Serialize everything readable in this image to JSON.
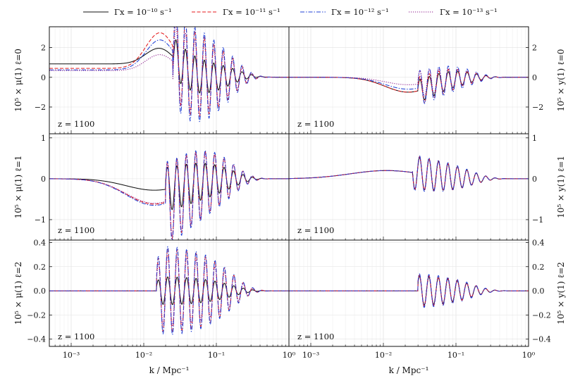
{
  "chart_data": {
    "type": "line",
    "layout": "3 rows x 2 columns, shared x-axis",
    "legend": {
      "placement": "top-center, above panels, single row",
      "series": [
        {
          "name": "Γx = 10⁻¹⁰ s⁻¹",
          "color": "#111111",
          "style": "solid"
        },
        {
          "name": "Γx = 10⁻¹¹ s⁻¹",
          "color": "#e41a1c",
          "style": "dashed"
        },
        {
          "name": "Γx = 10⁻¹² s⁻¹",
          "color": "#1f3fd6",
          "style": "dashdot"
        },
        {
          "name": "Γx = 10⁻¹³ s⁻¹",
          "color": "#8b1a8b",
          "style": "dotted"
        }
      ]
    },
    "xaxis": {
      "label": "k / Mpc⁻¹",
      "scale": "log",
      "xlim": [
        0.0005,
        1
      ],
      "ticks": [
        "10⁻³",
        "10⁻²",
        "10⁻¹",
        "10⁰"
      ],
      "grid": true
    },
    "annotation": "z = 1100",
    "panels": [
      {
        "id": "mu0",
        "row": 0,
        "col": 0,
        "ylabel": "10⁵ × μ(1) ℓ=0",
        "ylim": [
          -3.8,
          3.4
        ],
        "yticks": [
          "−2",
          "0",
          "2"
        ],
        "series": [
          {
            "name": "Γx = 10⁻¹⁰ s⁻¹",
            "base": 0.9,
            "bump": 2.1,
            "amp": 1.4
          },
          {
            "name": "Γx = 10⁻¹¹ s⁻¹",
            "base": 0.6,
            "bump": 3.1,
            "amp": 3.3
          },
          {
            "name": "Γx = 10⁻¹² s⁻¹",
            "base": 0.5,
            "bump": 2.6,
            "amp": 3.7
          },
          {
            "name": "Γx = 10⁻¹³ s⁻¹",
            "base": 0.45,
            "bump": 1.6,
            "amp": 2.8
          }
        ]
      },
      {
        "id": "y0",
        "row": 0,
        "col": 1,
        "ylabel": "10⁵ × y(1) ℓ=0",
        "ylim": [
          -3.8,
          3.4
        ],
        "yticks": [
          "−2",
          "0",
          "2"
        ],
        "series": [
          {
            "name": "Γx = 10⁻¹⁰ s⁻¹",
            "dip": -1.0,
            "amp": 0.8
          },
          {
            "name": "Γx = 10⁻¹¹ s⁻¹",
            "dip": -1.0,
            "amp": 1.0
          },
          {
            "name": "Γx = 10⁻¹² s⁻¹",
            "dip": -0.8,
            "amp": 1.25
          },
          {
            "name": "Γx = 10⁻¹³ s⁻¹",
            "dip": -0.5,
            "amp": 0.95
          }
        ]
      },
      {
        "id": "mu1",
        "row": 1,
        "col": 0,
        "ylabel": "10⁵ × μ(1) ℓ=1",
        "ylim": [
          -1.5,
          1.1
        ],
        "yticks": [
          "−1",
          "0",
          "1"
        ],
        "series": [
          {
            "name": "Γx = 10⁻¹⁰ s⁻¹",
            "dip": -0.28,
            "amp": 0.55
          },
          {
            "name": "Γx = 10⁻¹¹ s⁻¹",
            "dip": -0.62,
            "amp": 1.0
          },
          {
            "name": "Γx = 10⁻¹² s⁻¹",
            "dip": -0.65,
            "amp": 1.05
          },
          {
            "name": "Γx = 10⁻¹³ s⁻¹",
            "dip": -0.6,
            "amp": 0.95
          }
        ]
      },
      {
        "id": "y1",
        "row": 1,
        "col": 1,
        "ylabel": "10⁵ × y(1) ℓ=1",
        "ylim": [
          -1.5,
          1.1
        ],
        "yticks": [
          "−1",
          "0",
          "1"
        ],
        "series": [
          {
            "name": "Γx = 10⁻¹⁰ s⁻¹",
            "bump": 0.2,
            "amp": 0.42
          },
          {
            "name": "Γx = 10⁻¹¹ s⁻¹",
            "bump": 0.2,
            "amp": 0.44
          },
          {
            "name": "Γx = 10⁻¹² s⁻¹",
            "bump": 0.2,
            "amp": 0.46
          },
          {
            "name": "Γx = 10⁻¹³ s⁻¹",
            "bump": 0.2,
            "amp": 0.41
          }
        ]
      },
      {
        "id": "mu2",
        "row": 2,
        "col": 0,
        "ylabel": "10⁵ × μ(1) ℓ=2",
        "ylim": [
          -0.46,
          0.42
        ],
        "yticks": [
          "−0.4",
          "−0.2",
          "0.0",
          "0.2",
          "0.4"
        ],
        "series": [
          {
            "name": "Γx = 10⁻¹⁰ s⁻¹",
            "amp": 0.12
          },
          {
            "name": "Γx = 10⁻¹¹ s⁻¹",
            "amp": 0.36
          },
          {
            "name": "Γx = 10⁻¹² s⁻¹",
            "amp": 0.38
          },
          {
            "name": "Γx = 10⁻¹³ s⁻¹",
            "amp": 0.3
          }
        ]
      },
      {
        "id": "y2",
        "row": 2,
        "col": 1,
        "ylabel": "10⁵ × y(1) ℓ=2",
        "ylim": [
          -0.46,
          0.42
        ],
        "yticks": [
          "−0.4",
          "−0.2",
          "0.0",
          "0.2",
          "0.4"
        ],
        "series": [
          {
            "name": "Γx = 10⁻¹⁰ s⁻¹",
            "amp": 0.13
          },
          {
            "name": "Γx = 10⁻¹¹ s⁻¹",
            "amp": 0.14
          },
          {
            "name": "Γx = 10⁻¹² s⁻¹",
            "amp": 0.15
          },
          {
            "name": "Γx = 10⁻¹³ s⁻¹",
            "amp": 0.13
          }
        ]
      }
    ]
  }
}
